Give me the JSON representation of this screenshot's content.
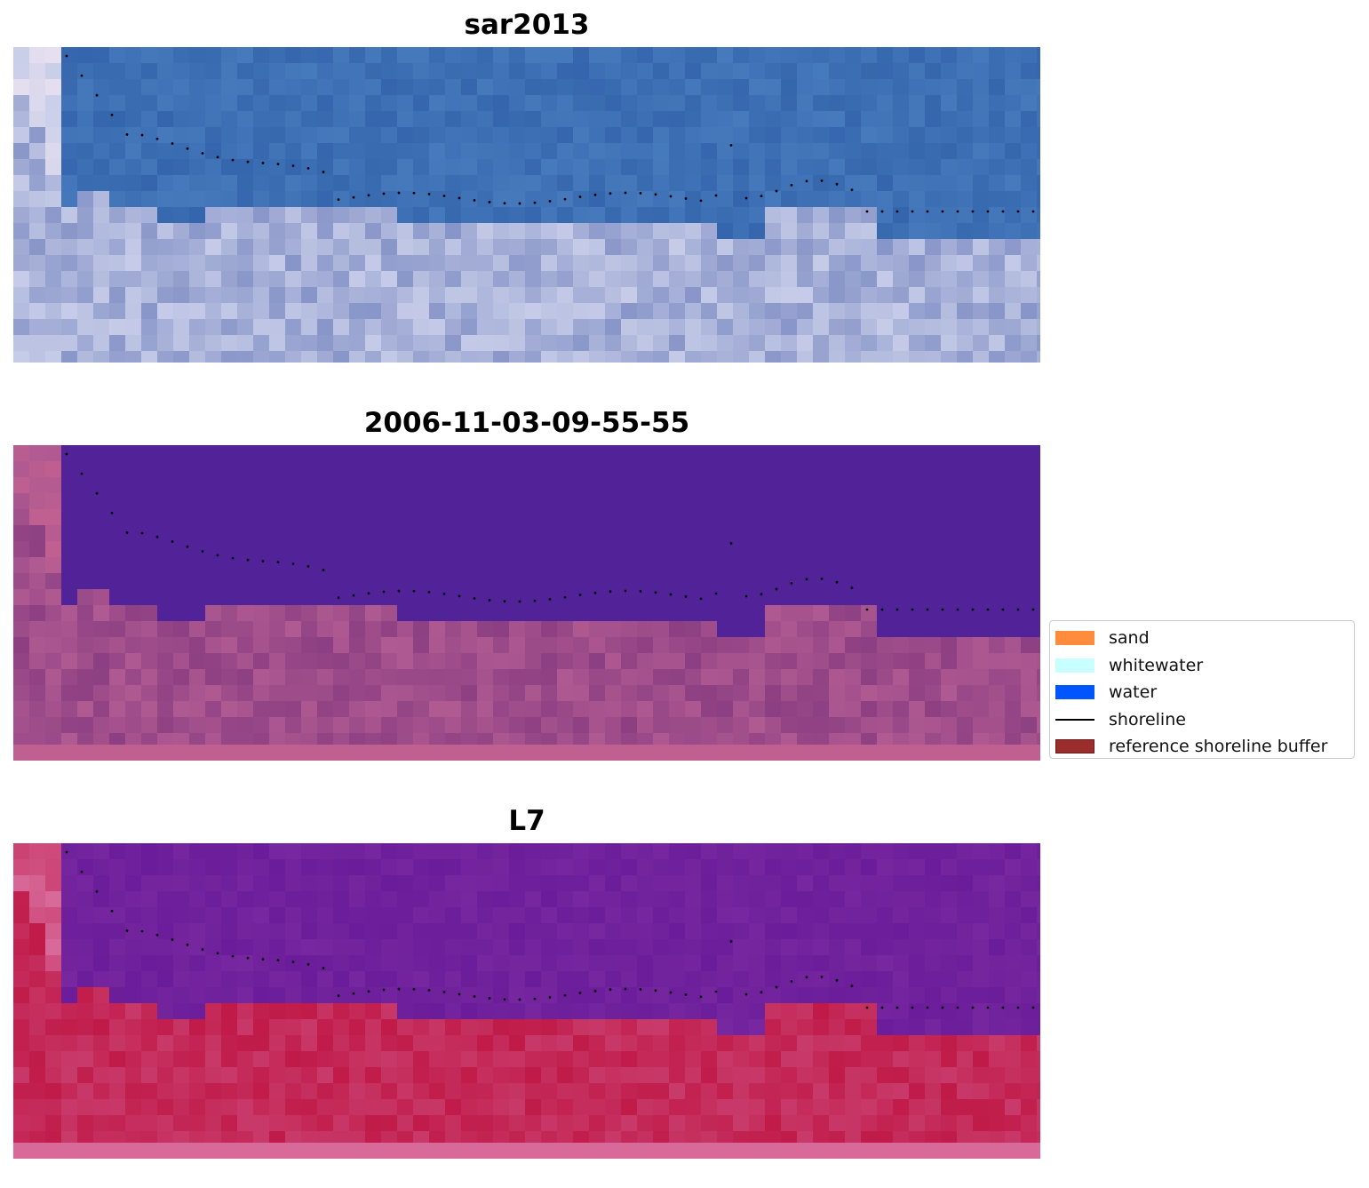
{
  "panels": [
    {
      "title": "sar2013",
      "colors": {
        "upper": "#3566ad",
        "upper_alt": "#4a7fc0",
        "lower": "#8895c8",
        "lower_alt": "#c6cce8",
        "accent": "#e8e0f0"
      }
    },
    {
      "title": "2006-11-03-09-55-55",
      "colors": {
        "upper": "#522398",
        "lower": "#8c3f82",
        "lower_alt": "#b05a92",
        "accent": "#c06090"
      }
    },
    {
      "title": "L7",
      "colors": {
        "upper": "#6a1c9a",
        "upper_alt": "#7a2aa0",
        "lower": "#c01a48",
        "lower_alt": "#c83a6a",
        "accent": "#d86a9a"
      }
    }
  ],
  "legend": {
    "items": [
      {
        "label": "sand",
        "color": "#ff8c3c",
        "kind": "patch"
      },
      {
        "label": "whitewater",
        "color": "#c8ffff",
        "kind": "patch"
      },
      {
        "label": "water",
        "color": "#0055ff",
        "kind": "patch"
      },
      {
        "label": "shoreline",
        "color": "#000000",
        "kind": "line"
      },
      {
        "label": "reference shoreline buffer",
        "color": "#9b2d2d",
        "kind": "patch"
      }
    ]
  }
}
